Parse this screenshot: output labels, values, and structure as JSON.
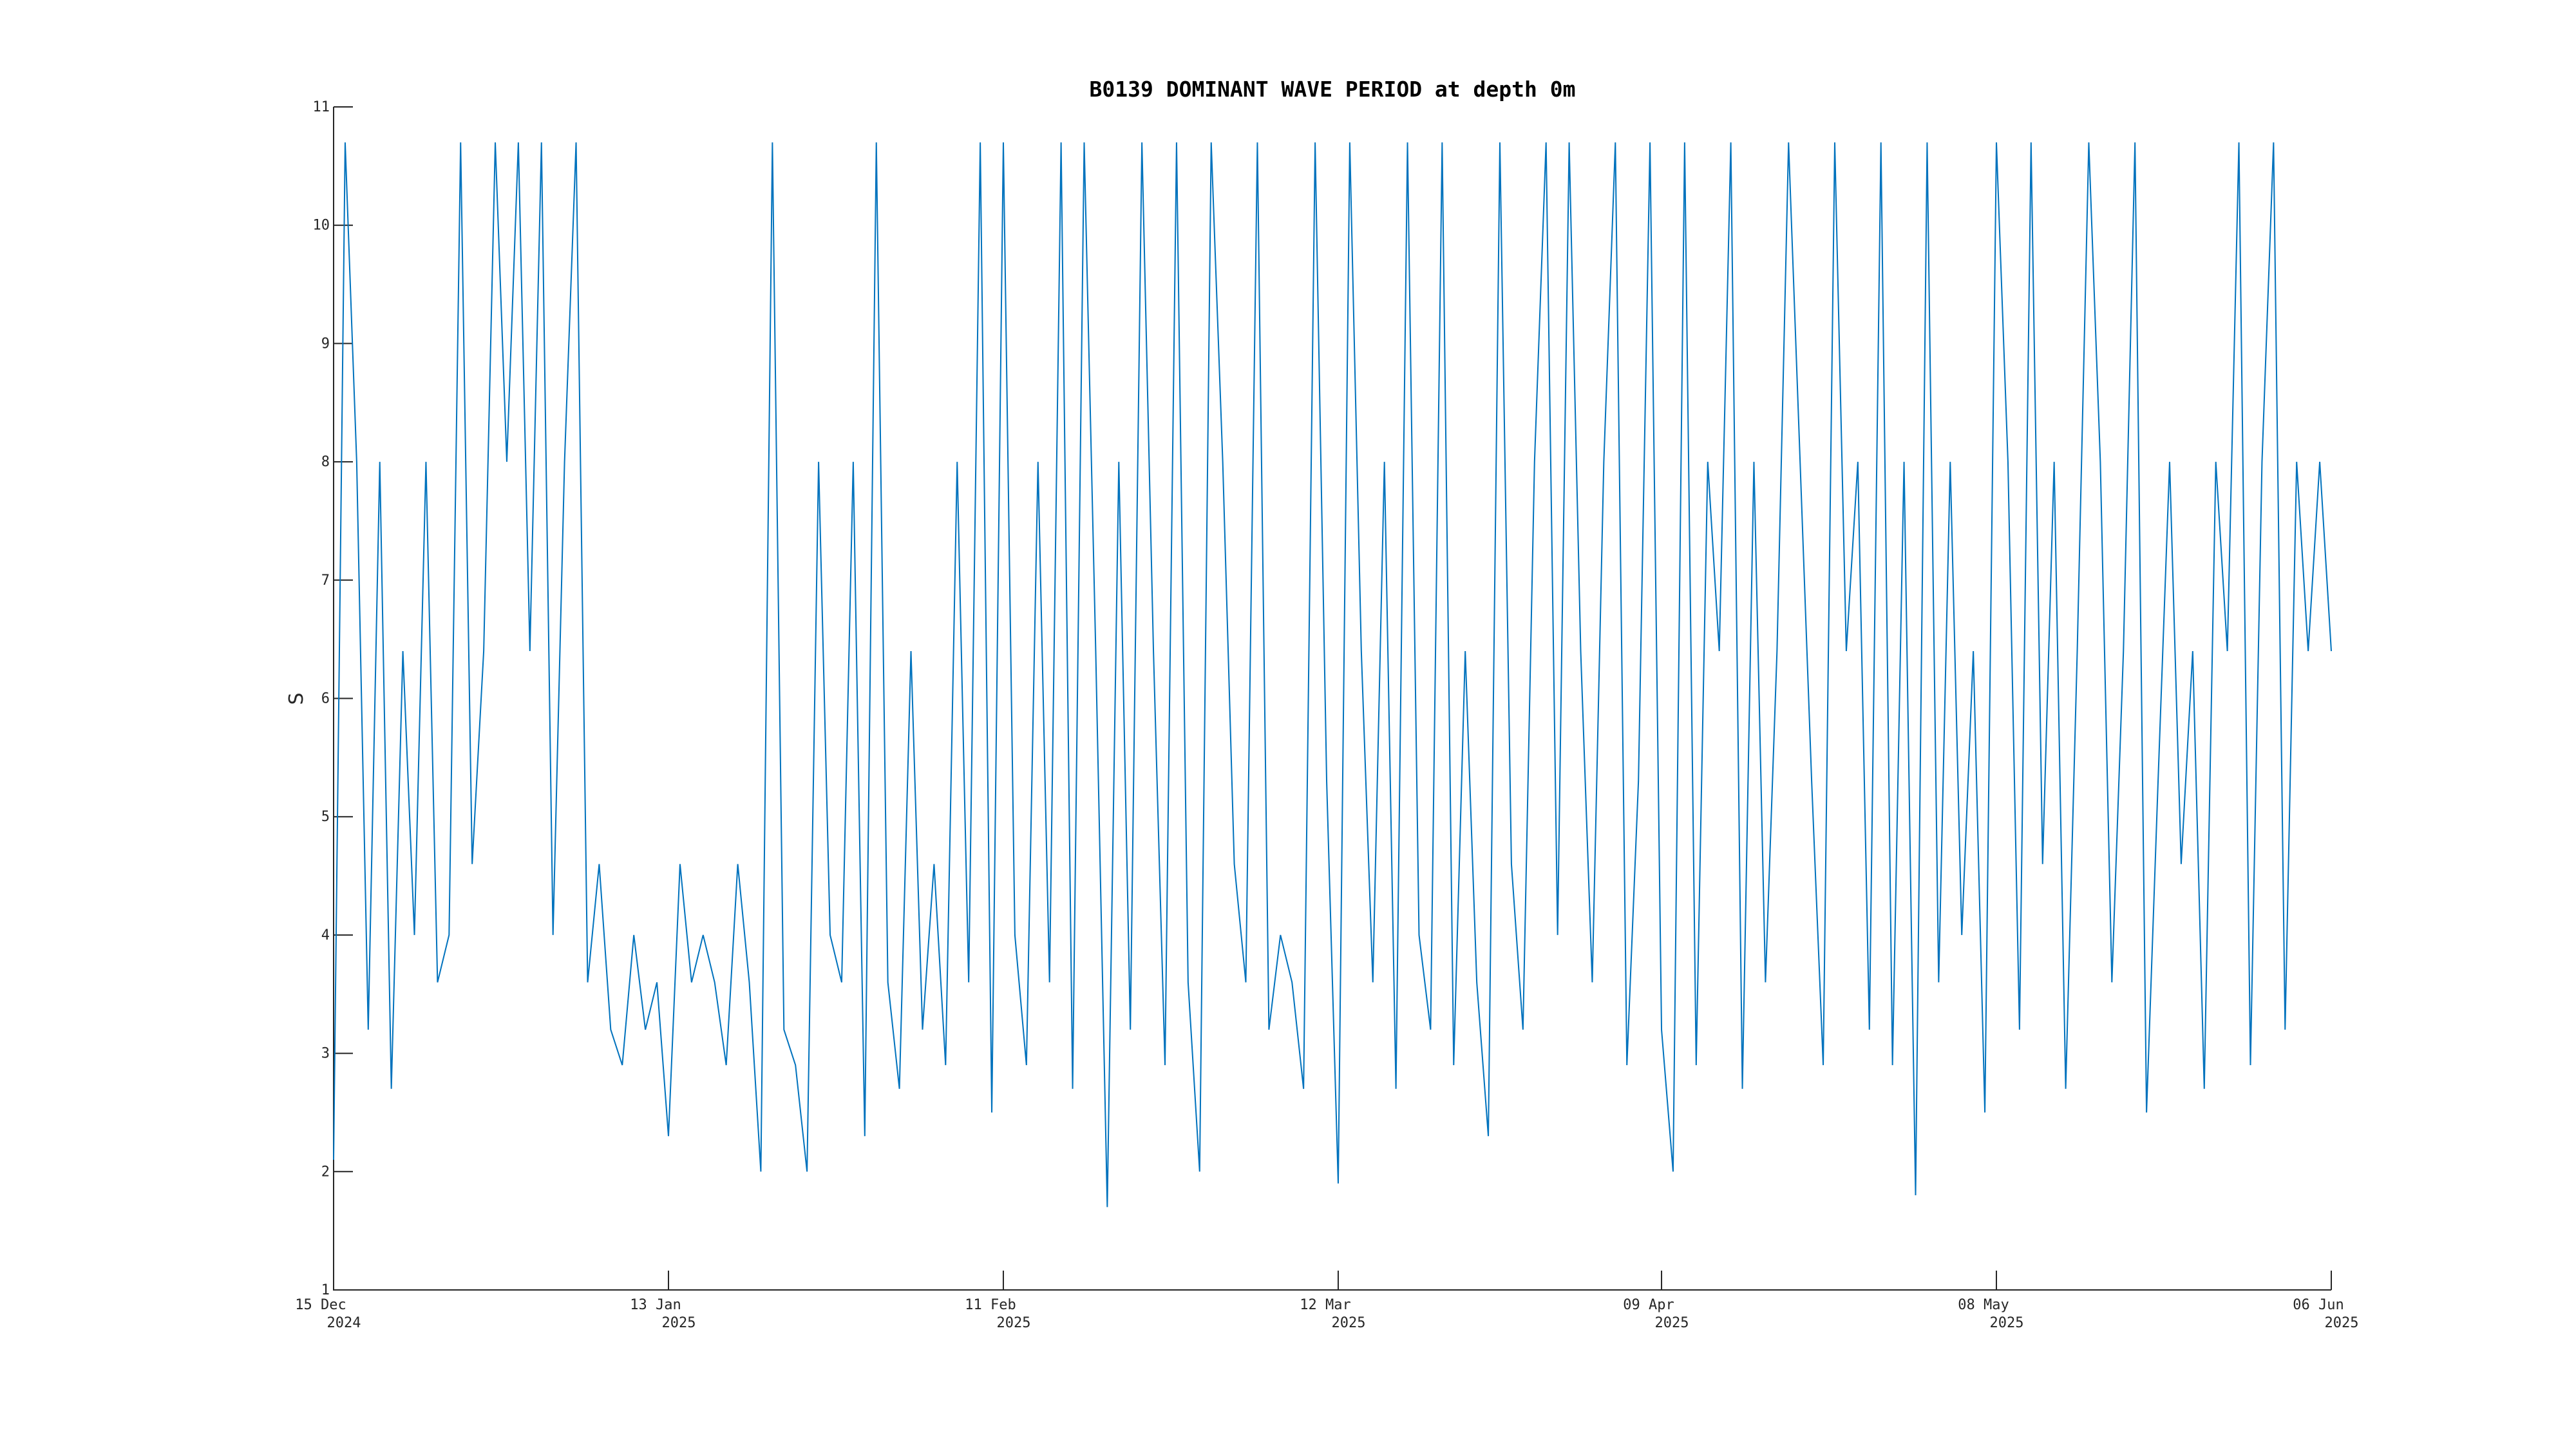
{
  "chart_data": {
    "type": "line",
    "title": "B0139 DOMINANT WAVE PERIOD at depth 0m",
    "y_label": "S",
    "x": [
      "2024-12-15",
      "2024-12-16",
      "2024-12-17",
      "2024-12-18",
      "2024-12-19",
      "2024-12-20",
      "2024-12-21",
      "2024-12-22",
      "2024-12-23",
      "2024-12-24",
      "2024-12-25",
      "2024-12-26",
      "2024-12-27",
      "2024-12-28",
      "2024-12-29",
      "2024-12-30",
      "2024-12-31",
      "2025-01-01",
      "2025-01-02",
      "2025-01-03",
      "2025-01-04",
      "2025-01-05",
      "2025-01-06",
      "2025-01-07",
      "2025-01-08",
      "2025-01-09",
      "2025-01-10",
      "2025-01-11",
      "2025-01-12",
      "2025-01-13",
      "2025-01-14",
      "2025-01-15",
      "2025-01-16",
      "2025-01-17",
      "2025-01-18",
      "2025-01-19",
      "2025-01-20",
      "2025-01-21",
      "2025-01-22",
      "2025-01-23",
      "2025-01-24",
      "2025-01-25",
      "2025-01-26",
      "2025-01-27",
      "2025-01-28",
      "2025-01-29",
      "2025-01-30",
      "2025-01-31",
      "2025-02-01",
      "2025-02-02",
      "2025-02-03",
      "2025-02-04",
      "2025-02-05",
      "2025-02-06",
      "2025-02-07",
      "2025-02-08",
      "2025-02-09",
      "2025-02-10",
      "2025-02-11",
      "2025-02-12",
      "2025-02-13",
      "2025-02-14",
      "2025-02-15",
      "2025-02-16",
      "2025-02-17",
      "2025-02-18",
      "2025-02-19",
      "2025-02-20",
      "2025-02-21",
      "2025-02-22",
      "2025-02-23",
      "2025-02-24",
      "2025-02-25",
      "2025-02-26",
      "2025-02-27",
      "2025-02-28",
      "2025-03-01",
      "2025-03-02",
      "2025-03-03",
      "2025-03-04",
      "2025-03-05",
      "2025-03-06",
      "2025-03-07",
      "2025-03-08",
      "2025-03-09",
      "2025-03-10",
      "2025-03-11",
      "2025-03-12",
      "2025-03-13",
      "2025-03-14",
      "2025-03-15",
      "2025-03-16",
      "2025-03-17",
      "2025-03-18",
      "2025-03-19",
      "2025-03-20",
      "2025-03-21",
      "2025-03-22",
      "2025-03-23",
      "2025-03-24",
      "2025-03-25",
      "2025-03-26",
      "2025-03-27",
      "2025-03-28",
      "2025-03-29",
      "2025-03-30",
      "2025-03-31",
      "2025-04-01",
      "2025-04-02",
      "2025-04-03",
      "2025-04-04",
      "2025-04-05",
      "2025-04-06",
      "2025-04-07",
      "2025-04-08",
      "2025-04-09",
      "2025-04-10",
      "2025-04-11",
      "2025-04-12",
      "2025-04-13",
      "2025-04-14",
      "2025-04-15",
      "2025-04-16",
      "2025-04-17",
      "2025-04-18",
      "2025-04-19",
      "2025-04-20",
      "2025-04-21",
      "2025-04-22",
      "2025-04-23",
      "2025-04-24",
      "2025-04-25",
      "2025-04-26",
      "2025-04-27",
      "2025-04-28",
      "2025-04-29",
      "2025-04-30",
      "2025-05-01",
      "2025-05-02",
      "2025-05-03",
      "2025-05-04",
      "2025-05-05",
      "2025-05-06",
      "2025-05-07",
      "2025-05-08",
      "2025-05-09",
      "2025-05-10",
      "2025-05-11",
      "2025-05-12",
      "2025-05-13",
      "2025-05-14",
      "2025-05-15",
      "2025-05-16",
      "2025-05-17",
      "2025-05-18",
      "2025-05-19",
      "2025-05-20",
      "2025-05-21",
      "2025-05-22",
      "2025-05-23",
      "2025-05-24",
      "2025-05-25",
      "2025-05-26",
      "2025-05-27",
      "2025-05-28",
      "2025-05-29",
      "2025-05-30",
      "2025-05-31",
      "2025-06-01",
      "2025-06-02",
      "2025-06-03",
      "2025-06-04",
      "2025-06-05",
      "2025-06-06"
    ],
    "series": [
      {
        "color": "#0072bd",
        "values": [
          2.1,
          10.7,
          8,
          3.2,
          8,
          2.7,
          6.4,
          4,
          8,
          3.6,
          4,
          10.7,
          4.6,
          6.4,
          10.7,
          8,
          10.7,
          6.4,
          10.7,
          4,
          8,
          10.7,
          3.6,
          4.6,
          3.2,
          2.9,
          4,
          3.2,
          3.6,
          2.3,
          4.6,
          3.6,
          4,
          3.6,
          2.9,
          4.6,
          3.6,
          2.0,
          10.7,
          3.2,
          2.9,
          2.0,
          8,
          4,
          3.6,
          8,
          2.3,
          10.7,
          3.6,
          2.7,
          6.4,
          3.2,
          4.6,
          2.9,
          8,
          3.6,
          10.7,
          2.5,
          10.7,
          4,
          2.9,
          8,
          3.6,
          10.7,
          2.7,
          10.7,
          6.4,
          1.7,
          8,
          3.2,
          10.7,
          6.4,
          2.9,
          10.7,
          3.6,
          2.0,
          10.7,
          8,
          4.6,
          3.6,
          10.7,
          3.2,
          4,
          3.6,
          2.7,
          10.7,
          5.3,
          1.9,
          10.7,
          6.4,
          3.6,
          8,
          2.7,
          10.7,
          4,
          3.2,
          10.7,
          2.9,
          6.4,
          3.6,
          2.3,
          10.7,
          4.6,
          3.2,
          8,
          10.7,
          4,
          10.7,
          6.4,
          3.6,
          8,
          10.7,
          2.9,
          5.3,
          10.7,
          3.2,
          2.0,
          10.7,
          2.9,
          8,
          6.4,
          10.7,
          2.7,
          8,
          3.6,
          6.4,
          10.7,
          8,
          5.3,
          2.9,
          10.7,
          6.4,
          8,
          3.2,
          10.7,
          2.9,
          8,
          1.8,
          10.7,
          3.6,
          8,
          4,
          6.4,
          2.5,
          10.7,
          8,
          3.2,
          10.7,
          4.6,
          8,
          2.7,
          6.4,
          10.7,
          8,
          3.6,
          6.4,
          10.7,
          2.5,
          5.3,
          8,
          4.6,
          6.4,
          2.7,
          8,
          6.4,
          10.7,
          2.9,
          8,
          10.7,
          3.2,
          8,
          6.4,
          8,
          6.4
        ]
      }
    ],
    "xlim": [
      "2024-12-15",
      "2025-06-06"
    ],
    "xticks": [
      {
        "value": "2024-12-15",
        "label": [
          "15 Dec",
          "2024"
        ]
      },
      {
        "value": "2025-01-13",
        "label": [
          "13 Jan",
          "2025"
        ]
      },
      {
        "value": "2025-02-11",
        "label": [
          "11 Feb",
          "2025"
        ]
      },
      {
        "value": "2025-03-12",
        "label": [
          "12 Mar",
          "2025"
        ]
      },
      {
        "value": "2025-04-09",
        "label": [
          "09 Apr",
          "2025"
        ]
      },
      {
        "value": "2025-05-08",
        "label": [
          "08 May",
          "2025"
        ]
      },
      {
        "value": "2025-06-06",
        "label": [
          "06 Jun",
          "2025"
        ]
      }
    ],
    "ylim": [
      1,
      11
    ],
    "yticks": [
      1,
      2,
      3,
      4,
      5,
      6,
      7,
      8,
      9,
      10,
      11
    ],
    "grid": false
  }
}
